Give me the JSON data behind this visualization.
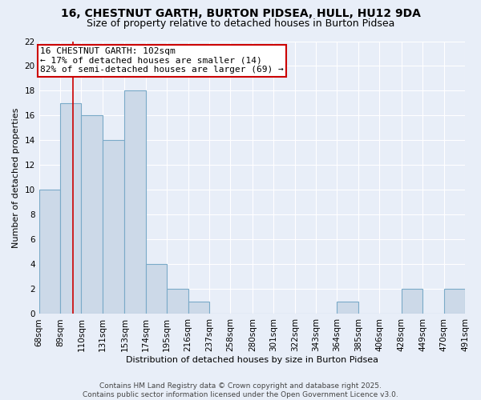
{
  "title": "16, CHESTNUT GARTH, BURTON PIDSEA, HULL, HU12 9DA",
  "subtitle": "Size of property relative to detached houses in Burton Pidsea",
  "xlabel": "Distribution of detached houses by size in Burton Pidsea",
  "ylabel": "Number of detached properties",
  "bin_edges": [
    68,
    89,
    110,
    131,
    153,
    174,
    195,
    216,
    237,
    258,
    280,
    301,
    322,
    343,
    364,
    385,
    406,
    428,
    449,
    470,
    491
  ],
  "bin_labels": [
    "68sqm",
    "89sqm",
    "110sqm",
    "131sqm",
    "153sqm",
    "174sqm",
    "195sqm",
    "216sqm",
    "237sqm",
    "258sqm",
    "280sqm",
    "301sqm",
    "322sqm",
    "343sqm",
    "364sqm",
    "385sqm",
    "406sqm",
    "428sqm",
    "449sqm",
    "470sqm",
    "491sqm"
  ],
  "bar_heights": [
    10,
    17,
    16,
    14,
    18,
    4,
    2,
    1,
    0,
    0,
    0,
    0,
    0,
    0,
    1,
    0,
    0,
    2,
    0,
    2
  ],
  "bar_color": "#ccd9e8",
  "bar_edge_color": "#7aaac8",
  "red_line_x": 102,
  "ylim": [
    0,
    22
  ],
  "yticks": [
    0,
    2,
    4,
    6,
    8,
    10,
    12,
    14,
    16,
    18,
    20,
    22
  ],
  "annotation_line1": "16 CHESTNUT GARTH: 102sqm",
  "annotation_line2": "← 17% of detached houses are smaller (14)",
  "annotation_line3": "82% of semi-detached houses are larger (69) →",
  "annotation_box_color": "#ffffff",
  "annotation_box_edge": "#cc0000",
  "footer_line1": "Contains HM Land Registry data © Crown copyright and database right 2025.",
  "footer_line2": "Contains public sector information licensed under the Open Government Licence v3.0.",
  "background_color": "#e8eef8",
  "grid_color": "#ffffff",
  "title_fontsize": 10,
  "subtitle_fontsize": 9,
  "axis_label_fontsize": 8,
  "tick_fontsize": 7.5,
  "annotation_fontsize": 8,
  "footer_fontsize": 6.5
}
